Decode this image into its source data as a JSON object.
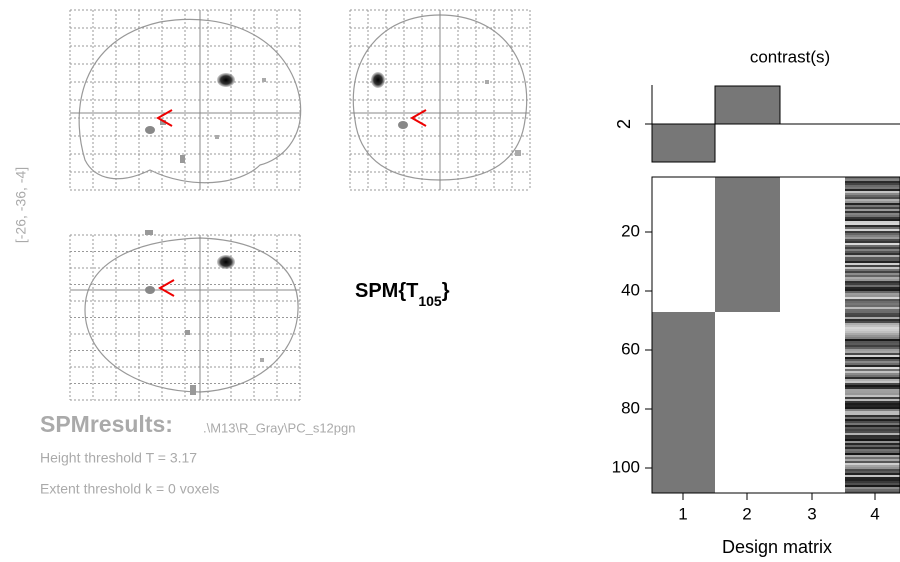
{
  "coordinates": "[-26, -36, -4]",
  "statistic": {
    "prefix": "SPM{T",
    "subscript": "105",
    "suffix": "}"
  },
  "results": {
    "title": "SPMresults:",
    "path": ".\\M13\\R_Gray\\PC_s12pgn",
    "height": "Height threshold T = 3.17",
    "extent": "Extent threshold k = 0 voxels"
  },
  "contrast": {
    "title": "contrast(s)",
    "label": "2"
  },
  "design_matrix": {
    "yticks": [
      "20",
      "40",
      "60",
      "80",
      "100"
    ],
    "xticks": [
      "1",
      "2",
      "3",
      "4"
    ],
    "xlabel": "Design matrix"
  }
}
